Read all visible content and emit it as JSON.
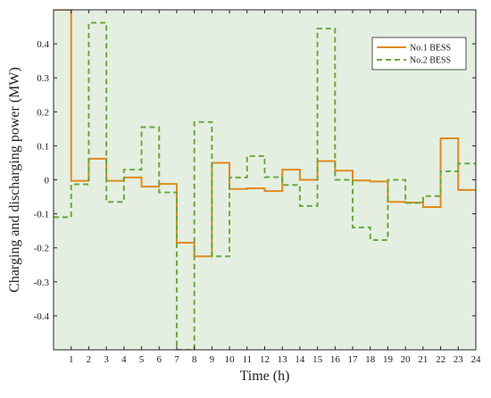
{
  "chart_data": {
    "type": "line",
    "step": true,
    "xlabel": "Time (h)",
    "ylabel": "Charging and discharging power (MW)",
    "xlim": [
      0,
      24
    ],
    "ylim": [
      -0.5,
      0.5
    ],
    "xticks": [
      1,
      2,
      3,
      4,
      5,
      6,
      7,
      8,
      9,
      10,
      11,
      12,
      13,
      14,
      15,
      16,
      17,
      18,
      19,
      20,
      21,
      22,
      23,
      24
    ],
    "xtick_labels": [
      "1",
      "2",
      "3",
      "4",
      "5",
      "6",
      "7",
      "8",
      "9",
      "10",
      "11",
      "12",
      "13",
      "14",
      "15",
      "16",
      "17",
      "18",
      "19",
      "20",
      "21",
      "22",
      "23",
      "24"
    ],
    "yticks": [
      -0.4,
      -0.3,
      -0.2,
      -0.1,
      0,
      0.1,
      0.2,
      0.3,
      0.4
    ],
    "ytick_labels": [
      "-0.4",
      "-0.3",
      "-0.2",
      "-0.1",
      "0",
      "0.1",
      "0.2",
      "0.3",
      "0.4"
    ],
    "grid": false,
    "background_color": "#e4efe1",
    "legend_position": "top-right",
    "series": [
      {
        "name": "No.1 BESS",
        "color": "#e08a1e",
        "dash": "solid",
        "values": [
          0.5,
          -0.003,
          0.062,
          -0.003,
          0.007,
          -0.02,
          -0.012,
          -0.185,
          -0.225,
          0.05,
          -0.027,
          -0.025,
          -0.033,
          0.03,
          0.0,
          0.055,
          0.027,
          -0.002,
          -0.005,
          -0.065,
          -0.067,
          -0.08,
          0.122,
          -0.03
        ]
      },
      {
        "name": "No.2 BESS",
        "color": "#6aa83e",
        "dash": "dashed",
        "values": [
          -0.11,
          -0.013,
          0.462,
          -0.065,
          0.03,
          0.155,
          -0.037,
          -0.5,
          0.17,
          -0.225,
          0.007,
          0.07,
          0.008,
          -0.015,
          -0.077,
          0.445,
          0.0,
          -0.14,
          -0.177,
          0.0,
          -0.068,
          -0.048,
          0.025,
          0.048
        ]
      }
    ]
  }
}
